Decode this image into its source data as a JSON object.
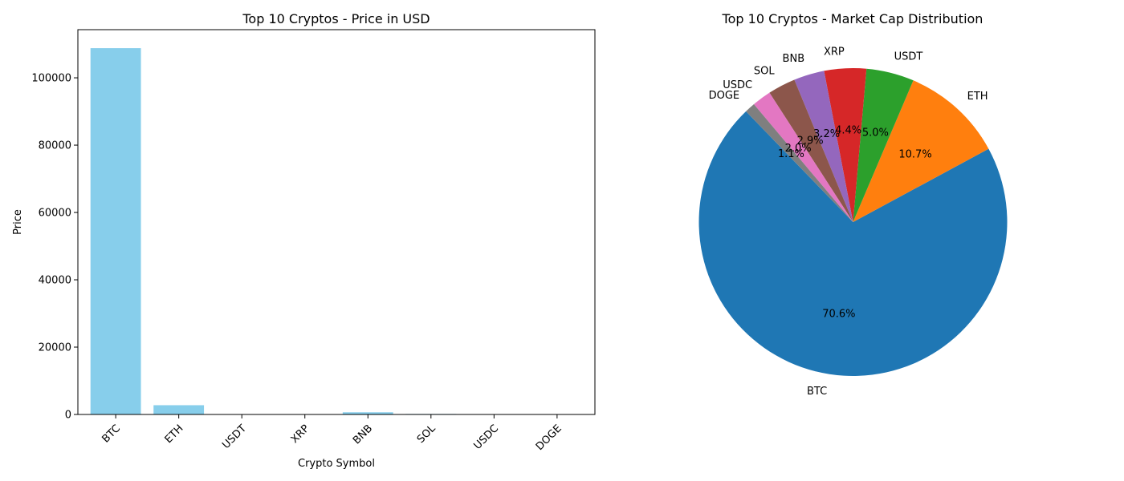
{
  "chart_data": [
    {
      "type": "bar",
      "title": "Top 10 Cryptos - Price in USD",
      "xlabel": "Crypto Symbol",
      "ylabel": "Price",
      "categories": [
        "BTC",
        "ETH",
        "USDT",
        "XRP",
        "BNB",
        "SOL",
        "USDC",
        "DOGE"
      ],
      "values": [
        108800,
        2750,
        1,
        2.2,
        650,
        150,
        1,
        0.17
      ],
      "ylim": [
        0,
        114300
      ],
      "yticks": [
        0,
        20000,
        40000,
        60000,
        80000,
        100000
      ],
      "color": "#87ceeb",
      "grid": false
    },
    {
      "type": "pie",
      "title": "Top 10 Cryptos - Market Cap Distribution",
      "start_angle_deg": 134,
      "labels": [
        "BTC",
        "ETH",
        "USDT",
        "XRP",
        "BNB",
        "SOL",
        "USDC",
        "DOGE"
      ],
      "values": [
        70.6,
        10.7,
        5.0,
        4.4,
        3.2,
        2.9,
        2.0,
        1.1
      ],
      "pct_labels": [
        "70.6%",
        "10.7%",
        "5.0%",
        "4.4%",
        "3.2%",
        "2.9%",
        "2.0%",
        "1.1%"
      ],
      "colors": [
        "#1f77b4",
        "#ff7f0e",
        "#2ca02c",
        "#d62728",
        "#9467bd",
        "#8c564b",
        "#e377c2",
        "#7f7f7f"
      ]
    }
  ]
}
